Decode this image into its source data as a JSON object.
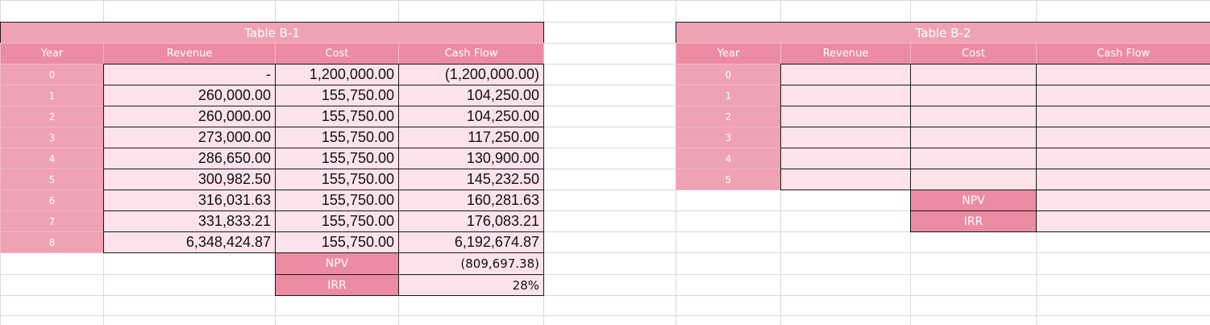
{
  "colors": {
    "title_bg": "#f0a2b5",
    "header_bg": "#ec8ca2",
    "year_bg": "#eea2b3",
    "data_bg": "#fbe3e9",
    "gridline": "#d9d9d9",
    "border": "#1a1a1a"
  },
  "table_b1": {
    "title": "Table B-1",
    "headers": [
      "Year",
      "Revenue",
      "Cost",
      "Cash Flow"
    ],
    "rows": [
      {
        "year": "0",
        "revenue": "-",
        "cost": "1,200,000.00",
        "cash_flow": "(1,200,000.00)"
      },
      {
        "year": "1",
        "revenue": "260,000.00",
        "cost": "155,750.00",
        "cash_flow": "104,250.00"
      },
      {
        "year": "2",
        "revenue": "260,000.00",
        "cost": "155,750.00",
        "cash_flow": "104,250.00"
      },
      {
        "year": "3",
        "revenue": "273,000.00",
        "cost": "155,750.00",
        "cash_flow": "117,250.00"
      },
      {
        "year": "4",
        "revenue": "286,650.00",
        "cost": "155,750.00",
        "cash_flow": "130,900.00"
      },
      {
        "year": "5",
        "revenue": "300,982.50",
        "cost": "155,750.00",
        "cash_flow": "145,232.50"
      },
      {
        "year": "6",
        "revenue": "316,031.63",
        "cost": "155,750.00",
        "cash_flow": "160,281.63"
      },
      {
        "year": "7",
        "revenue": "331,833.21",
        "cost": "155,750.00",
        "cash_flow": "176,083.21"
      },
      {
        "year": "8",
        "revenue": "6,348,424.87",
        "cost": "155,750.00",
        "cash_flow": "6,192,674.87"
      }
    ],
    "npv_label": "NPV",
    "npv_value": "(809,697.38)",
    "irr_label": "IRR",
    "irr_value": "28%"
  },
  "table_b2": {
    "title": "Table B-2",
    "headers": [
      "Year",
      "Revenue",
      "Cost",
      "Cash Flow"
    ],
    "years": [
      "0",
      "1",
      "2",
      "3",
      "4",
      "5"
    ],
    "npv_label": "NPV",
    "irr_label": "IRR"
  }
}
